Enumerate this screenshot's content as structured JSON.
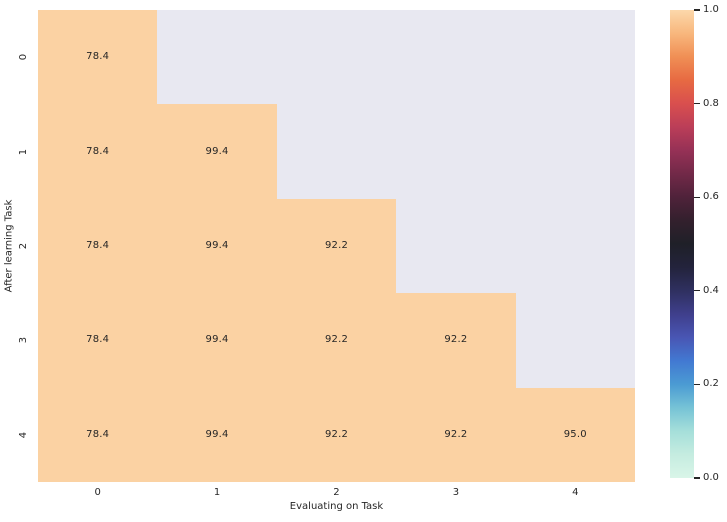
{
  "chart_data": {
    "type": "heatmap",
    "title": "",
    "xlabel": "Evaluating on Task",
    "ylabel": "After learning Task",
    "x_ticklabels": [
      "0",
      "1",
      "2",
      "3",
      "4"
    ],
    "y_ticklabels": [
      "0",
      "1",
      "2",
      "3",
      "4"
    ],
    "mask": "upper-triangle",
    "matrix": [
      [
        78.4,
        null,
        null,
        null,
        null
      ],
      [
        78.4,
        99.4,
        null,
        null,
        null
      ],
      [
        78.4,
        99.4,
        92.2,
        null,
        null
      ],
      [
        78.4,
        99.4,
        92.2,
        92.2,
        null
      ],
      [
        78.4,
        99.4,
        92.2,
        92.2,
        95.0
      ]
    ],
    "grid": false,
    "legend": "none",
    "colorbar": {
      "position": "right",
      "range": [
        0.0,
        1.0
      ],
      "ticks": [
        1.0,
        0.8,
        0.6,
        0.4,
        0.2,
        0.0
      ],
      "colormap": "icefire",
      "colormap_stops": [
        {
          "pos": 0,
          "color": "#fcd8ab"
        },
        {
          "pos": 5,
          "color": "#f8b77d"
        },
        {
          "pos": 10,
          "color": "#f08f55"
        },
        {
          "pos": 15,
          "color": "#e76a42"
        },
        {
          "pos": 20,
          "color": "#d94f4e"
        },
        {
          "pos": 25,
          "color": "#bb3e58"
        },
        {
          "pos": 30,
          "color": "#963156"
        },
        {
          "pos": 35,
          "color": "#722948"
        },
        {
          "pos": 40,
          "color": "#4f223a"
        },
        {
          "pos": 45,
          "color": "#33202d"
        },
        {
          "pos": 50,
          "color": "#1f2028"
        },
        {
          "pos": 55,
          "color": "#23233c"
        },
        {
          "pos": 60,
          "color": "#2f3060"
        },
        {
          "pos": 65,
          "color": "#3f3f8c"
        },
        {
          "pos": 70,
          "color": "#4956b4"
        },
        {
          "pos": 75,
          "color": "#4279d2"
        },
        {
          "pos": 80,
          "color": "#4b9bd3"
        },
        {
          "pos": 85,
          "color": "#76c3d6"
        },
        {
          "pos": 90,
          "color": "#a5dfda"
        },
        {
          "pos": 95,
          "color": "#c5ece0"
        },
        {
          "pos": 100,
          "color": "#d9f5e8"
        }
      ]
    },
    "colors": {
      "cell_fill": "#fbd2a3",
      "masked_bg": "#e8e8f1",
      "annotation": "#262626",
      "tick_text": "#262626",
      "figure_bg": "#ffffff"
    },
    "annotation_format": "one-decimal"
  }
}
